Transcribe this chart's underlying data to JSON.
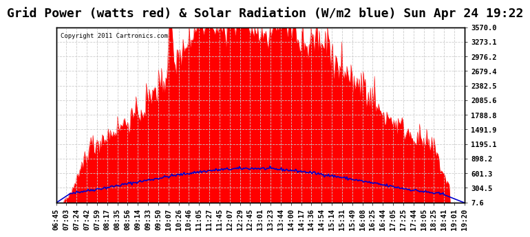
{
  "title": "Grid Power (watts red) & Solar Radiation (W/m2 blue) Sun Apr 24 19:22",
  "copyright": "Copyright 2011 Cartronics.com",
  "yticks": [
    7.6,
    304.5,
    601.3,
    898.2,
    1195.1,
    1491.9,
    1788.8,
    2085.6,
    2382.5,
    2679.4,
    2976.2,
    3273.1,
    3570.0
  ],
  "ymin": 7.6,
  "ymax": 3570.0,
  "bg_color": "#ffffff",
  "plot_bg_color": "#ffffff",
  "grid_color": "#cccccc",
  "red_color": "#ff0000",
  "blue_color": "#0000cc",
  "title_fontsize": 13,
  "tick_fontsize": 7.5,
  "xtick_labels": [
    "06:45",
    "07:03",
    "07:24",
    "07:42",
    "07:59",
    "08:17",
    "08:35",
    "08:56",
    "09:14",
    "09:33",
    "09:50",
    "10:07",
    "10:26",
    "10:46",
    "11:05",
    "11:27",
    "11:45",
    "12:07",
    "12:29",
    "12:45",
    "13:01",
    "13:23",
    "13:44",
    "14:00",
    "14:17",
    "14:36",
    "14:54",
    "15:14",
    "15:31",
    "15:49",
    "16:08",
    "16:25",
    "16:44",
    "17:05",
    "17:25",
    "17:44",
    "18:05",
    "18:25",
    "18:41",
    "19:01",
    "19:20"
  ],
  "n_points": 400
}
